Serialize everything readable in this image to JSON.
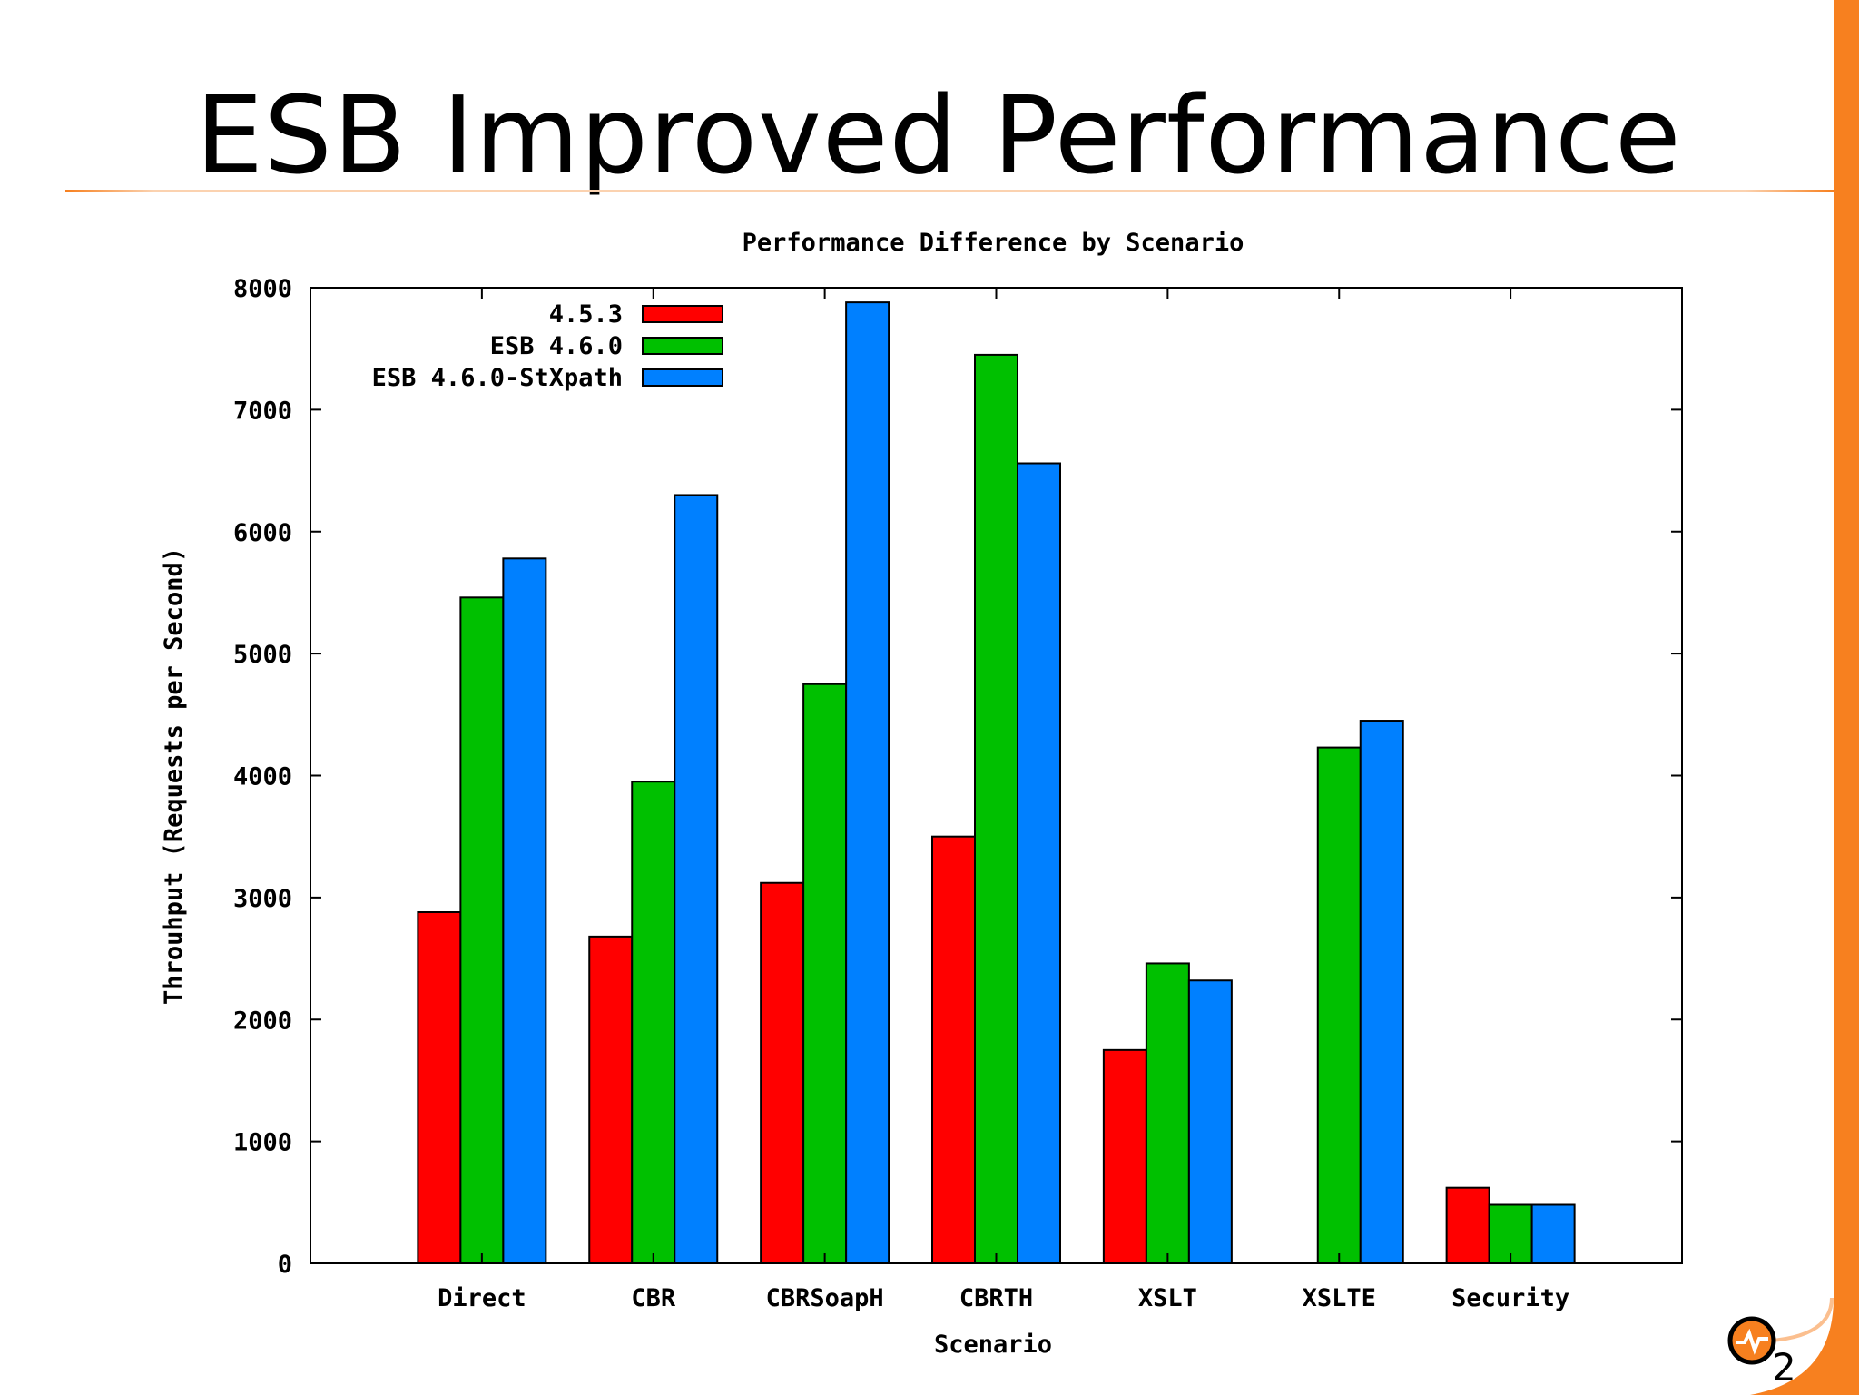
{
  "slide": {
    "title": "ESB Improved Performance"
  },
  "colors": {
    "accent": "#f7801f",
    "series": [
      "#ff0000",
      "#00c000",
      "#0080ff"
    ]
  },
  "logo": {
    "icon": "wso2-logo-icon",
    "text": "2"
  },
  "chart_data": {
    "type": "bar",
    "title": "Performance Difference by Scenario",
    "xlabel": "Scenario",
    "ylabel": "Throuhput (Requests per Second)",
    "ylim": [
      0,
      8000
    ],
    "yticks": [
      "0",
      "1000",
      "2000",
      "3000",
      "4000",
      "5000",
      "6000",
      "7000",
      "8000"
    ],
    "categories": [
      "Direct",
      "CBR",
      "CBRSoapH",
      "CBRTH",
      "XSLT",
      "XSLTE",
      "Security"
    ],
    "series": [
      {
        "name": "4.5.3",
        "color": "#ff0000",
        "values": [
          2880,
          2680,
          3120,
          3500,
          1750,
          0,
          620
        ]
      },
      {
        "name": "ESB 4.6.0",
        "color": "#00c000",
        "values": [
          5460,
          3950,
          4750,
          7450,
          2460,
          4230,
          480
        ]
      },
      {
        "name": "ESB 4.6.0-StXpath",
        "color": "#0080ff",
        "values": [
          5780,
          6300,
          7880,
          6560,
          2320,
          4450,
          480
        ]
      }
    ],
    "legend": "top-left",
    "grid": false
  }
}
